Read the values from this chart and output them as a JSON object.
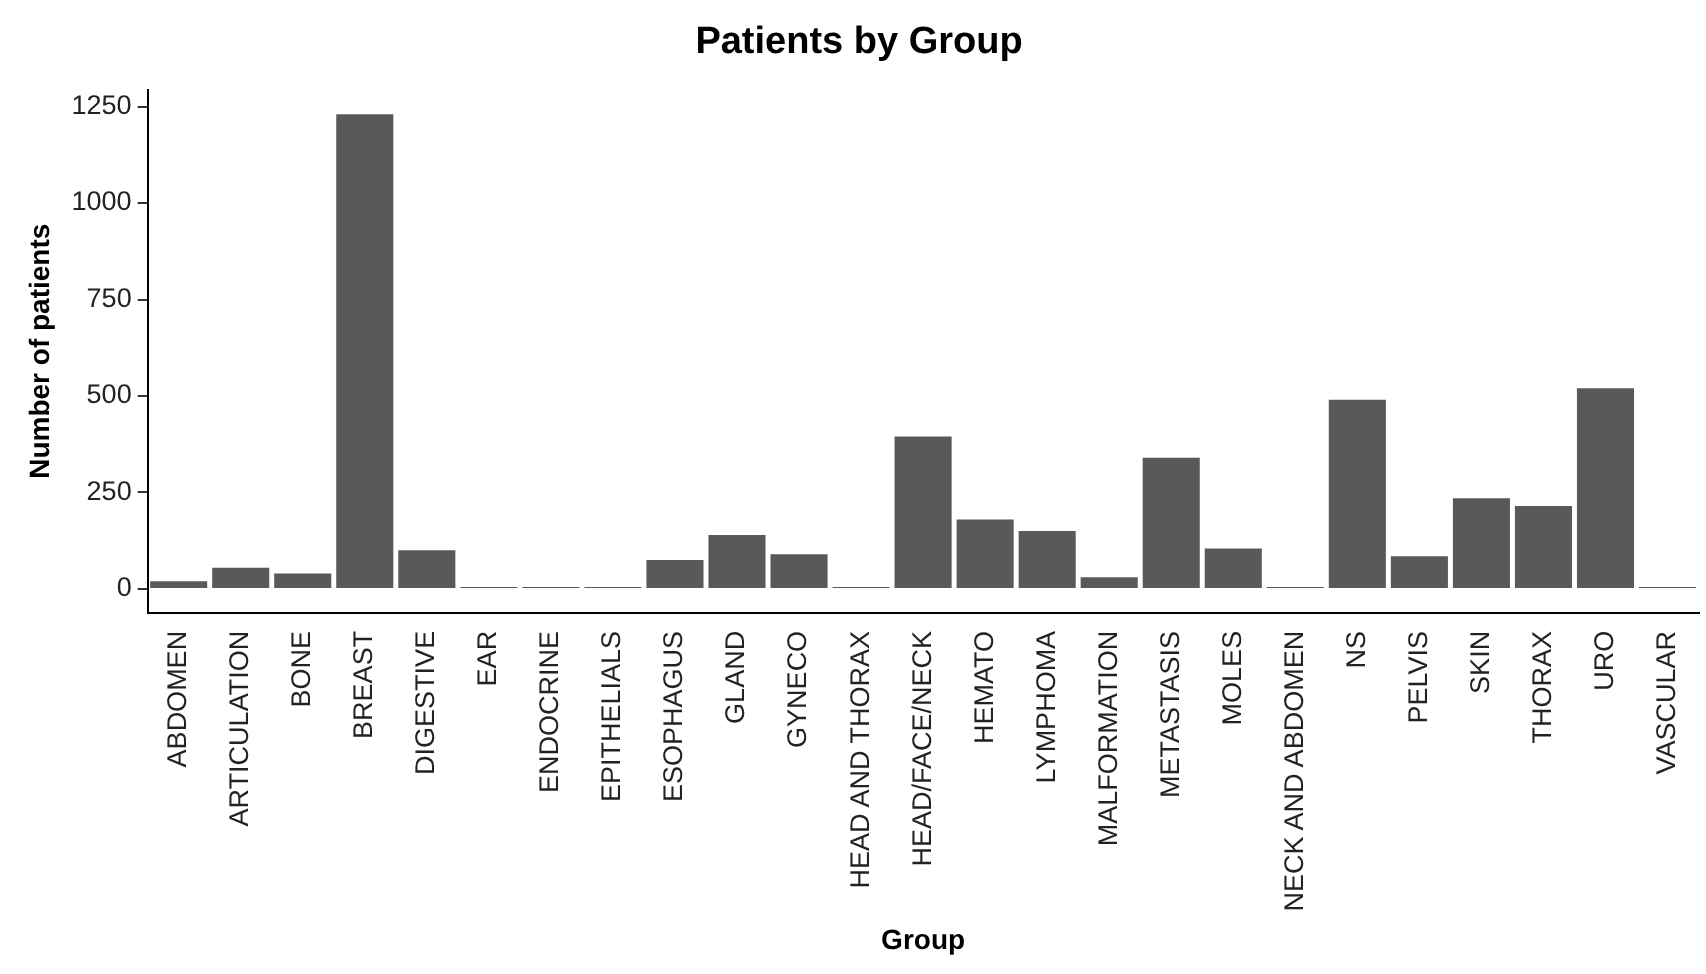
{
  "chart_data": {
    "type": "bar",
    "title": "Patients by Group",
    "xlabel": "Group",
    "ylabel": "Number of patients",
    "categories": [
      "ABDOMEN",
      "ARTICULATION",
      "BONE",
      "BREAST",
      "DIGESTIVE",
      "EAR",
      "ENDOCRINE",
      "EPITHELIALS",
      "ESOPHAGUS",
      "GLAND",
      "GYNECO",
      "HEAD AND THORAX",
      "HEAD/FACE/NECK",
      "HEMATO",
      "LYMPHOMA",
      "MALFORMATION",
      "METASTASIS",
      "MOLES",
      "NECK AND ABDOMEN",
      "NS",
      "PELVIS",
      "SKIN",
      "THORAX",
      "URO",
      "VASCULAR"
    ],
    "values": [
      20,
      55,
      40,
      1230,
      100,
      5,
      5,
      5,
      75,
      140,
      90,
      5,
      395,
      180,
      150,
      30,
      340,
      105,
      5,
      490,
      85,
      235,
      215,
      520,
      5
    ],
    "color": "#595959",
    "ylim": [
      -62,
      1294
    ],
    "yticks": [
      0,
      250,
      500,
      750,
      1000,
      1250
    ],
    "grid": false,
    "legend": false
  }
}
